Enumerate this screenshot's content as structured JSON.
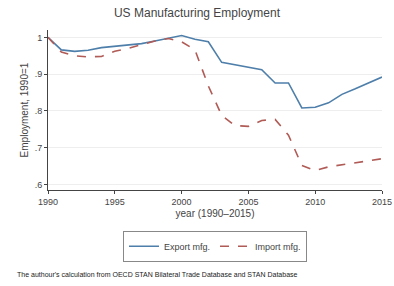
{
  "chart_data": {
    "type": "line",
    "title": "US Manufacturing Employment",
    "x_label": "year (1990–2015)",
    "y_label": "Employment, 1990=1",
    "annotations": [
      "The authour's calculation from OECD STAN Bilateral Trade Database and STAN Database"
    ],
    "x": [
      1990,
      1991,
      1992,
      1993,
      1994,
      1995,
      1996,
      1997,
      1998,
      1999,
      2000,
      2001,
      2002,
      2003,
      2004,
      2005,
      2006,
      2007,
      2008,
      2009,
      2010,
      2011,
      2012,
      2013,
      2014,
      2015
    ],
    "series": [
      {
        "name": "Export mfg.",
        "color": "#4e7faa",
        "line_style": "solid",
        "values": [
          1.0,
          0.966,
          0.962,
          0.965,
          0.972,
          0.975,
          0.978,
          0.983,
          0.99,
          0.997,
          1.005,
          0.995,
          0.988,
          0.932,
          0.926,
          0.918,
          0.912,
          0.876,
          0.876,
          0.808,
          0.81,
          0.822,
          0.845,
          0.86,
          0.876,
          0.892
        ]
      },
      {
        "name": "Import mfg.",
        "color": "#b05b56",
        "line_style": "dashed",
        "values": [
          1.0,
          0.96,
          0.95,
          0.947,
          0.948,
          0.962,
          0.97,
          0.98,
          0.99,
          0.997,
          0.988,
          0.966,
          0.868,
          0.788,
          0.76,
          0.758,
          0.774,
          0.777,
          0.734,
          0.652,
          0.638,
          0.648,
          0.653,
          0.658,
          0.663,
          0.67
        ]
      }
    ],
    "xlim": [
      1990,
      2015
    ],
    "ylim": [
      0.585,
      1.02
    ],
    "xticks": [
      1990,
      1995,
      2000,
      2005,
      2010,
      2015
    ],
    "yticks": [
      {
        "value": 0.6,
        "label": ".6"
      },
      {
        "value": 0.7,
        "label": ".7"
      },
      {
        "value": 0.8,
        "label": ".8"
      },
      {
        "value": 0.9,
        "label": ".9"
      },
      {
        "value": 1.0,
        "label": "1"
      }
    ],
    "grid": true,
    "legend": "bottom"
  }
}
